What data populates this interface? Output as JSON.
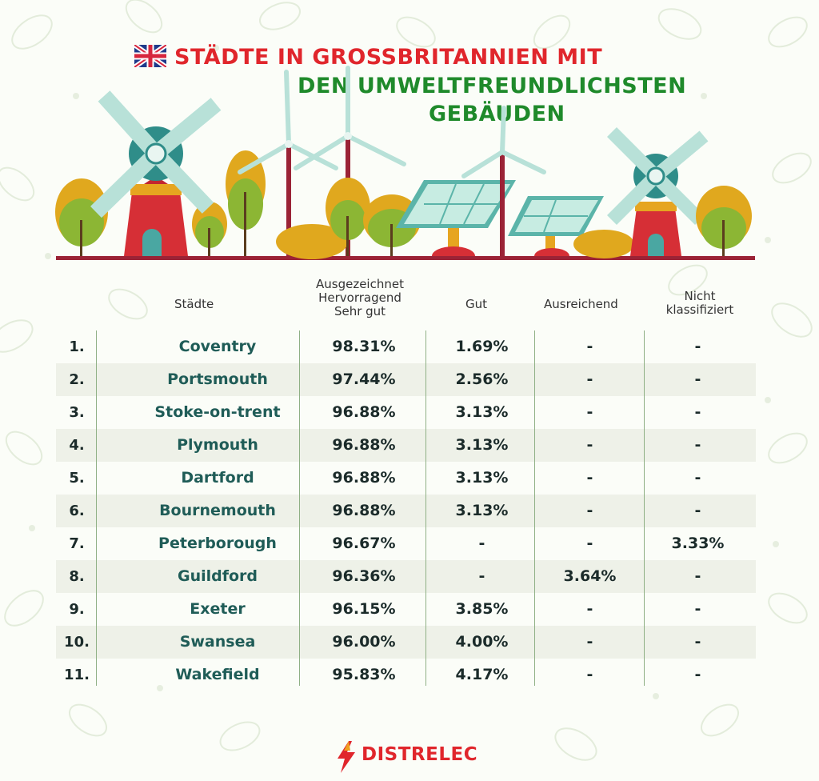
{
  "title": {
    "line1": "STÄDTE IN GROSSBRITANNIEN MIT",
    "line2": "DEN UMWELTFREUNDLICHSTEN",
    "line3": "GEBÄUDEN"
  },
  "headers": {
    "city": "Städte",
    "top_l1": "Ausgezeichnet",
    "top_l2": "Hervorragend",
    "top_l3": "Sehr gut",
    "good": "Gut",
    "sufficient": "Ausreichend",
    "unclassified_l1": "Nicht",
    "unclassified_l2": "klassifiziert"
  },
  "rows": [
    {
      "rank": "1.",
      "city": "Coventry",
      "top": "98.31%",
      "good": "1.69%",
      "sufficient": "-",
      "unclassified": "-"
    },
    {
      "rank": "2.",
      "city": "Portsmouth",
      "top": "97.44%",
      "good": "2.56%",
      "sufficient": "-",
      "unclassified": "-"
    },
    {
      "rank": "3.",
      "city": "Stoke-on-trent",
      "top": "96.88%",
      "good": "3.13%",
      "sufficient": "-",
      "unclassified": "-"
    },
    {
      "rank": "4.",
      "city": "Plymouth",
      "top": "96.88%",
      "good": "3.13%",
      "sufficient": "-",
      "unclassified": "-"
    },
    {
      "rank": "5.",
      "city": "Dartford",
      "top": "96.88%",
      "good": "3.13%",
      "sufficient": "-",
      "unclassified": "-"
    },
    {
      "rank": "6.",
      "city": "Bournemouth",
      "top": "96.88%",
      "good": "3.13%",
      "sufficient": "-",
      "unclassified": "-"
    },
    {
      "rank": "7.",
      "city": "Peterborough",
      "top": "96.67%",
      "good": "-",
      "sufficient": "-",
      "unclassified": "3.33%"
    },
    {
      "rank": "8.",
      "city": "Guildford",
      "top": "96.36%",
      "good": "-",
      "sufficient": "3.64%",
      "unclassified": "-"
    },
    {
      "rank": "9.",
      "city": "Exeter",
      "top": "96.15%",
      "good": "3.85%",
      "sufficient": "-",
      "unclassified": "-"
    },
    {
      "rank": "10.",
      "city": "Swansea",
      "top": "96.00%",
      "good": "4.00%",
      "sufficient": "-",
      "unclassified": "-"
    },
    {
      "rank": "11.",
      "city": "Wakefield",
      "top": "95.83%",
      "good": "4.17%",
      "sufficient": "-",
      "unclassified": "-"
    }
  ],
  "logo": {
    "text": "DISTRELEC",
    "icon": "lightning-bolt-icon"
  },
  "colors": {
    "title_red": "#e0262c",
    "title_green": "#1f8a2b",
    "row_shade": "#eef1e8",
    "city_text": "#1f5c57"
  }
}
